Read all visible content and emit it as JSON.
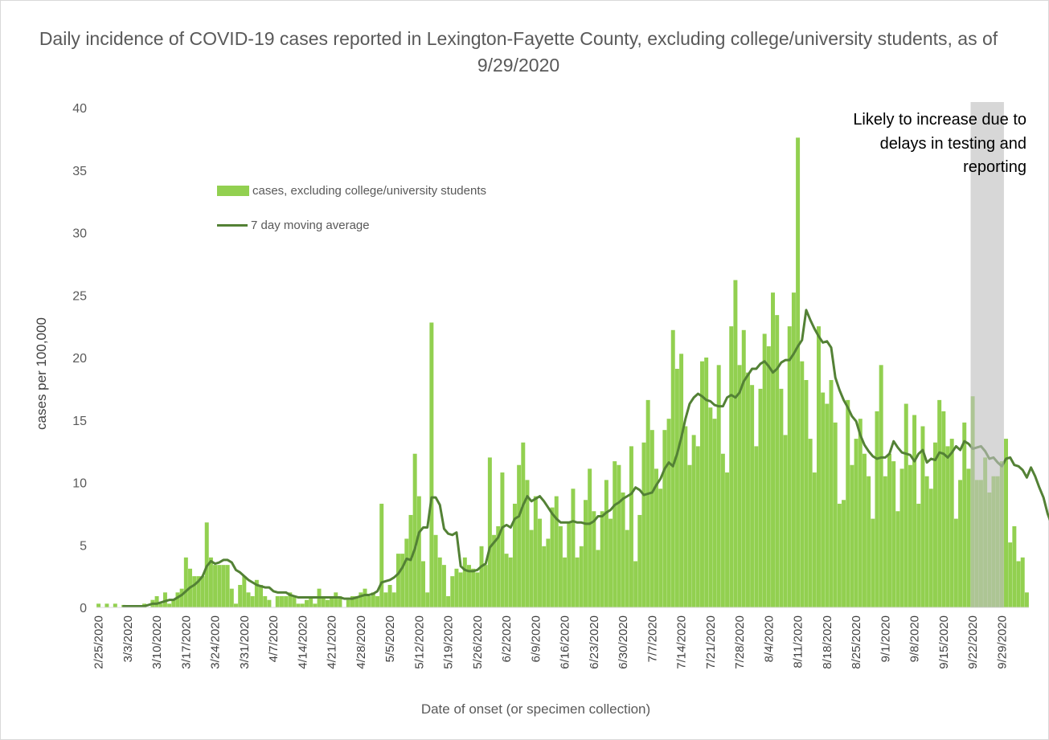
{
  "chart_data": {
    "type": "bar",
    "title": "Daily incidence of COVID-19 cases reported in Lexington-Fayette County, excluding college/university students, as of 9/29/2020",
    "xlabel": "Date of onset (or specimen collection)",
    "ylabel": "cases per 100,000",
    "ylim": [
      0,
      40
    ],
    "yticks": [
      "0",
      "5",
      "10",
      "15",
      "20",
      "25",
      "30",
      "35",
      "40"
    ],
    "x_start": "2/25/2020",
    "x_end": "9/29/2020",
    "xtick_labels": [
      "2/25/2020",
      "3/3/2020",
      "3/10/2020",
      "3/17/2020",
      "3/24/2020",
      "3/31/2020",
      "4/7/2020",
      "4/14/2020",
      "4/21/2020",
      "4/28/2020",
      "5/5/2020",
      "5/12/2020",
      "5/19/2020",
      "5/26/2020",
      "6/2/2020",
      "6/9/2020",
      "6/16/2020",
      "6/23/2020",
      "6/30/2020",
      "7/7/2020",
      "7/14/2020",
      "7/21/2020",
      "7/28/2020",
      "8/4/2020",
      "8/11/2020",
      "8/18/2020",
      "8/25/2020",
      "9/1/2020",
      "9/8/2020",
      "9/15/2020",
      "9/22/2020",
      "9/29/2020"
    ],
    "series": [
      {
        "name": "cases, excluding college/university students",
        "type": "bar",
        "color": "#92d050",
        "values": [
          0.3,
          0,
          0.3,
          0,
          0.3,
          0,
          0.2,
          0.1,
          0,
          0,
          0,
          0.3,
          0,
          0.6,
          0.9,
          0.3,
          1.2,
          0.3,
          0.6,
          1.2,
          1.5,
          4.0,
          3.1,
          2.5,
          2.5,
          2.5,
          6.8,
          4.0,
          3.4,
          3.4,
          3.4,
          3.4,
          1.5,
          0.3,
          1.8,
          2.5,
          1.2,
          0.9,
          2.2,
          1.8,
          0.9,
          0.6,
          0,
          0.9,
          0.9,
          0.9,
          1.2,
          0.9,
          0.3,
          0.3,
          0.6,
          0.9,
          0.3,
          1.5,
          0.9,
          0.6,
          0.9,
          1.2,
          0.9,
          0,
          0.6,
          0.9,
          0.9,
          1.2,
          1.5,
          0.9,
          1.2,
          0.9,
          8.3,
          1.2,
          1.8,
          1.2,
          4.3,
          4.3,
          5.5,
          7.4,
          12.3,
          8.9,
          3.7,
          1.2,
          22.8,
          5.8,
          4.0,
          3.4,
          0.9,
          2.5,
          3.1,
          2.8,
          4.0,
          3.4,
          3.1,
          2.8,
          4.9,
          3.4,
          12.0,
          5.8,
          6.5,
          10.8,
          4.3,
          4.0,
          8.3,
          11.4,
          13.2,
          10.2,
          6.2,
          8.9,
          7.1,
          4.9,
          5.5,
          8.0,
          8.9,
          6.5,
          4.0,
          6.8,
          9.5,
          4.0,
          4.9,
          8.6,
          11.1,
          7.7,
          4.6,
          7.7,
          10.2,
          7.1,
          11.7,
          11.4,
          9.2,
          6.2,
          12.9,
          3.7,
          7.4,
          13.2,
          16.6,
          14.2,
          11.1,
          9.5,
          14.2,
          15.1,
          22.2,
          19.1,
          20.3,
          14.5,
          11.4,
          13.8,
          12.9,
          19.7,
          20.0,
          16.0,
          15.1,
          19.4,
          12.3,
          10.8,
          22.5,
          26.2,
          19.4,
          22.2,
          18.8,
          17.8,
          12.9,
          17.5,
          21.9,
          20.9,
          25.2,
          23.4,
          17.5,
          13.8,
          22.5,
          25.2,
          37.6,
          19.7,
          18.2,
          13.5,
          10.8,
          22.5,
          17.2,
          16.3,
          18.2,
          14.8,
          8.3,
          8.6,
          16.6,
          11.4,
          13.5,
          15.1,
          12.3,
          10.5,
          7.1,
          15.7,
          19.4,
          10.5,
          12.3,
          11.7,
          7.7,
          11.1,
          16.3,
          11.4,
          15.4,
          8.3,
          14.5,
          10.5,
          9.5,
          13.2,
          16.6,
          15.7,
          12.9,
          13.5,
          7.1,
          10.2,
          14.8,
          11.1,
          16.9,
          10.2,
          10.2,
          12.0,
          9.2,
          10.5,
          10.5,
          11.7,
          13.5,
          5.2,
          6.5,
          3.7,
          4.0,
          1.2
        ]
      },
      {
        "name": "7 day moving average",
        "type": "line",
        "color": "#538135",
        "values": [
          null,
          null,
          null,
          null,
          null,
          null,
          0.1,
          0.1,
          0.1,
          0.1,
          0.1,
          0.1,
          0.2,
          0.3,
          0.3,
          0.4,
          0.5,
          0.6,
          0.6,
          0.8,
          1.0,
          1.3,
          1.6,
          1.8,
          2.1,
          2.5,
          3.3,
          3.7,
          3.5,
          3.6,
          3.8,
          3.8,
          3.6,
          3.0,
          2.8,
          2.5,
          2.2,
          2.0,
          1.8,
          1.7,
          1.6,
          1.6,
          1.3,
          1.2,
          1.2,
          1.2,
          1.0,
          0.9,
          0.8,
          0.8,
          0.8,
          0.8,
          0.8,
          0.8,
          0.8,
          0.8,
          0.8,
          0.8,
          0.8,
          0.7,
          0.7,
          0.7,
          0.8,
          0.9,
          1.0,
          1.0,
          1.1,
          1.3,
          2.0,
          2.1,
          2.2,
          2.4,
          2.7,
          3.2,
          3.9,
          3.8,
          4.7,
          6.0,
          6.4,
          6.4,
          8.8,
          8.8,
          8.2,
          6.3,
          5.9,
          5.8,
          6.0,
          3.3,
          3.0,
          2.9,
          2.9,
          3.0,
          3.3,
          3.5,
          4.8,
          5.2,
          5.6,
          6.4,
          6.6,
          6.4,
          7.1,
          7.3,
          8.2,
          8.9,
          8.5,
          8.7,
          8.9,
          8.5,
          8.0,
          7.5,
          7.1,
          6.8,
          6.8,
          6.8,
          6.9,
          6.8,
          6.8,
          6.7,
          6.7,
          6.9,
          7.3,
          7.3,
          7.6,
          7.8,
          8.2,
          8.4,
          8.7,
          8.9,
          9.1,
          9.6,
          9.4,
          9.0,
          9.1,
          9.2,
          9.8,
          10.3,
          11.1,
          11.6,
          11.3,
          12.3,
          13.6,
          15.1,
          16.3,
          16.8,
          17.1,
          16.9,
          16.6,
          16.5,
          16.2,
          16.1,
          16.1,
          16.8,
          17.0,
          16.8,
          17.2,
          18.1,
          18.6,
          19.1,
          19.1,
          19.5,
          19.7,
          19.3,
          18.8,
          19.1,
          19.6,
          19.8,
          19.8,
          20.3,
          20.9,
          21.4,
          23.8,
          23.0,
          22.3,
          21.7,
          21.2,
          21.3,
          20.8,
          18.4,
          17.4,
          16.6,
          16.0,
          15.3,
          14.9,
          13.8,
          13.0,
          12.5,
          12.1,
          11.9,
          12.0,
          12.0,
          12.3,
          13.3,
          12.8,
          12.4,
          12.3,
          12.2,
          11.7,
          12.3,
          12.6,
          11.6,
          11.9,
          11.8,
          12.4,
          12.3,
          12.0,
          12.4,
          12.9,
          12.6,
          13.3,
          13.1,
          12.7,
          12.8,
          12.9,
          12.5,
          11.9,
          12.0,
          11.6,
          11.3,
          11.9,
          12.0,
          11.4,
          11.3,
          11.0,
          10.4,
          11.2,
          10.5,
          9.6,
          8.8,
          7.5,
          6.6
        ]
      }
    ],
    "annotation": {
      "text": "Likely to increase due to delays in testing and reporting",
      "shaded_from": "9/22/2020",
      "shaded_to": "9/29/2020",
      "color": "#bfbfbf"
    },
    "legend_position": "top-left",
    "grid": false
  }
}
